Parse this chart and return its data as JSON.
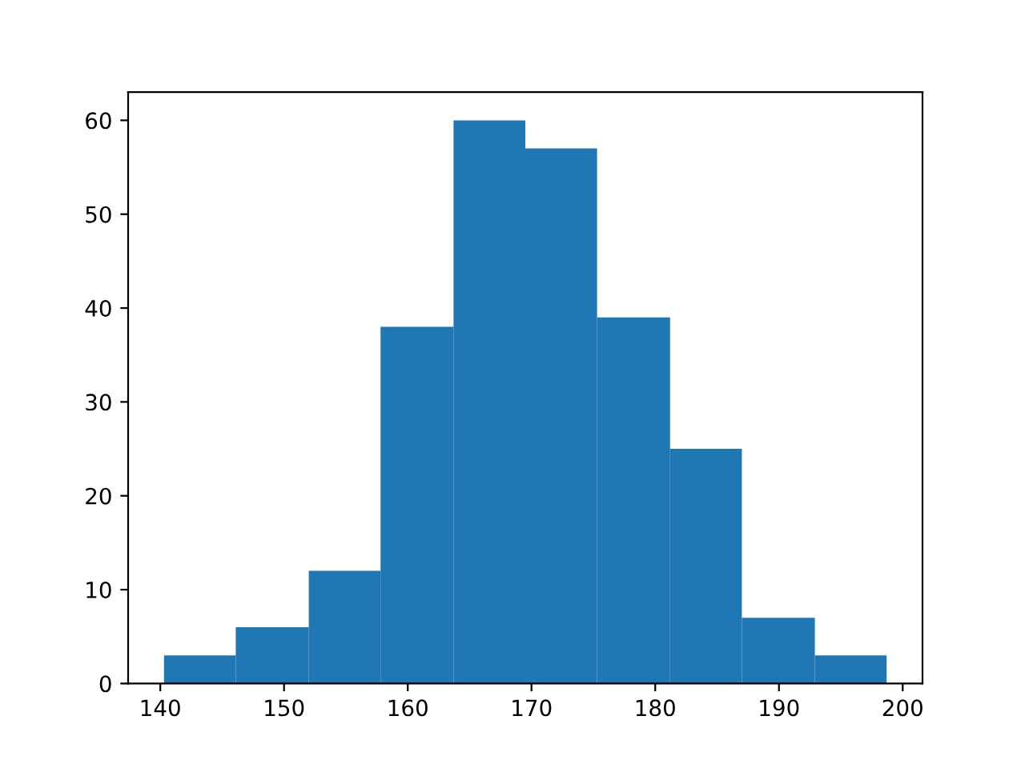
{
  "chart_data": {
    "type": "histogram",
    "bins": [
      140.3,
      146.1,
      152.0,
      157.8,
      163.7,
      169.5,
      175.3,
      181.2,
      187.0,
      192.9,
      198.7
    ],
    "values": [
      3,
      6,
      12,
      38,
      60,
      57,
      39,
      25,
      7,
      3
    ],
    "color": "#1f77b4",
    "xlim": [
      137.4,
      201.6
    ],
    "xticks": [
      140,
      150,
      160,
      170,
      180,
      190,
      200
    ],
    "ylim": [
      0,
      63
    ],
    "yticks": [
      0,
      10,
      20,
      30,
      40,
      50,
      60
    ]
  }
}
